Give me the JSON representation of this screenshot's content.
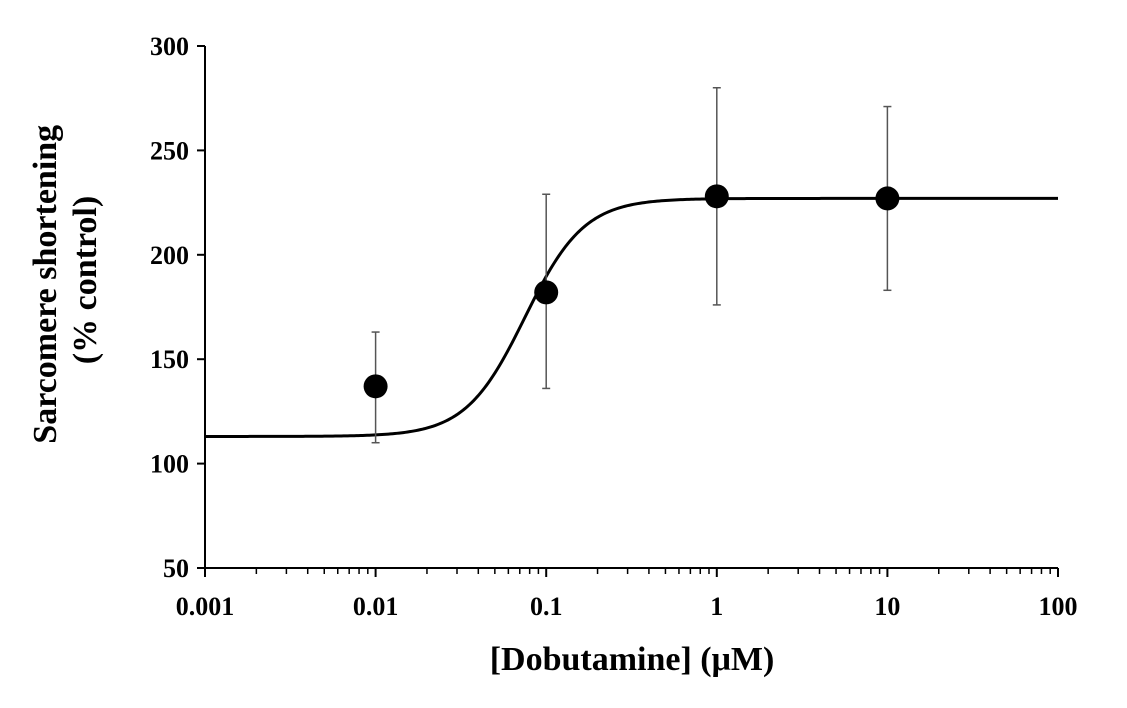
{
  "chart_data": {
    "type": "scatter",
    "title": "",
    "xlabel": "[Dobutamine] (μM)",
    "ylabel_lines": [
      "Sarcomere shortening",
      "(% control)"
    ],
    "x_scale": "log",
    "xlim": [
      0.001,
      100
    ],
    "ylim": [
      50,
      300
    ],
    "x_tick_labels": [
      "0.001",
      "0.01",
      "0.1",
      "1",
      "10",
      "100"
    ],
    "y_tick_labels": [
      "50",
      "100",
      "150",
      "200",
      "250",
      "300"
    ],
    "grid": false,
    "legend": "none",
    "points": [
      {
        "x": 0.01,
        "y": 137,
        "err_low": 110,
        "err_high": 163
      },
      {
        "x": 0.1,
        "y": 182,
        "err_low": 136,
        "err_high": 229
      },
      {
        "x": 1,
        "y": 228,
        "err_low": 176,
        "err_high": 280
      },
      {
        "x": 10,
        "y": 227,
        "err_low": 183,
        "err_high": 271
      }
    ],
    "fit": {
      "model": "sigmoidal dose-response",
      "bottom": 113,
      "top": 227,
      "ec50": 0.075,
      "hill": 2.5
    },
    "colors": {
      "axes": "#000000",
      "points": "#000000",
      "curve": "#000000"
    }
  }
}
